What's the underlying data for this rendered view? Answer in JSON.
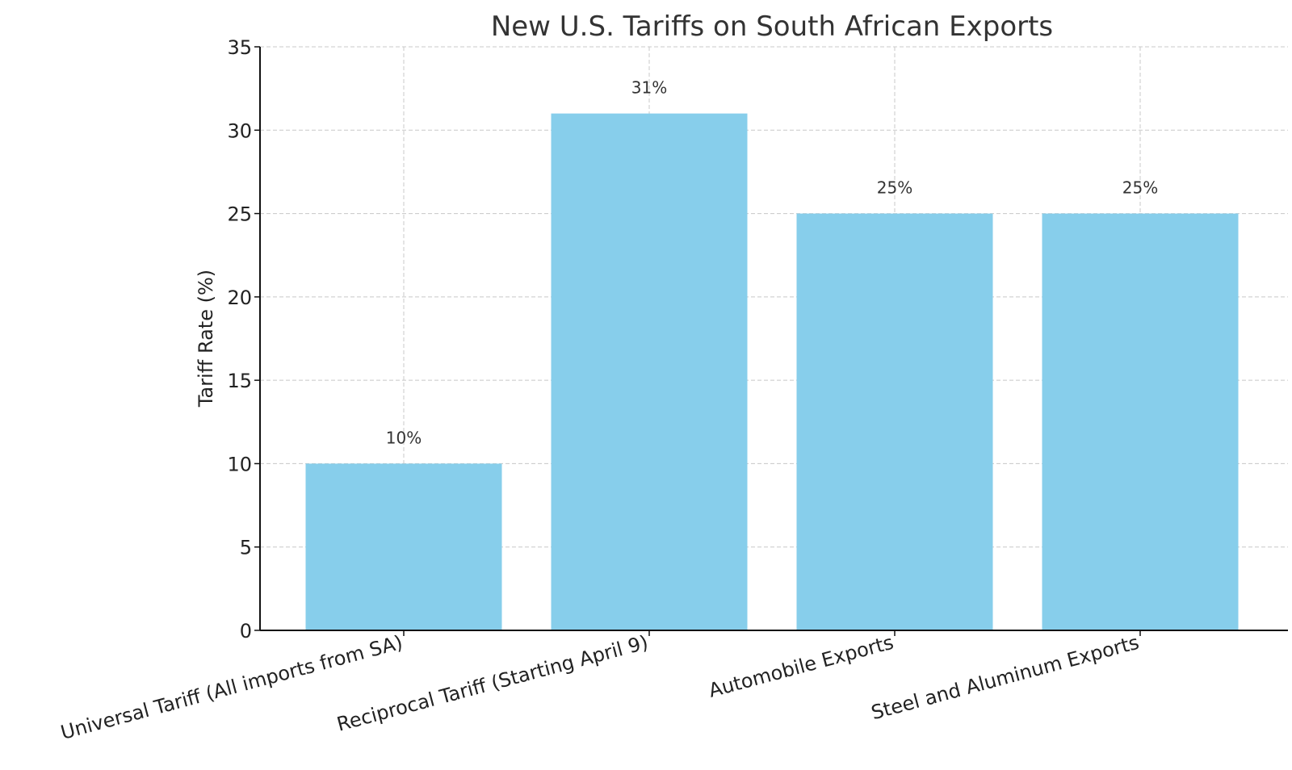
{
  "chart_data": {
    "type": "bar",
    "title": "New U.S. Tariffs on South African Exports",
    "xlabel": "",
    "ylabel": "Tariff Rate (%)",
    "categories": [
      "Universal Tariff (All imports from SA)",
      "Reciprocal Tariff (Starting April 9)",
      "Automobile Exports",
      "Steel and Aluminum Exports"
    ],
    "values": [
      10,
      31,
      25,
      25
    ],
    "value_labels": [
      "10%",
      "31%",
      "25%",
      "25%"
    ],
    "ylim": [
      0,
      35
    ],
    "yticks": [
      0,
      5,
      10,
      15,
      20,
      25,
      30,
      35
    ],
    "grid": true,
    "bar_color": "#87CEEB"
  }
}
